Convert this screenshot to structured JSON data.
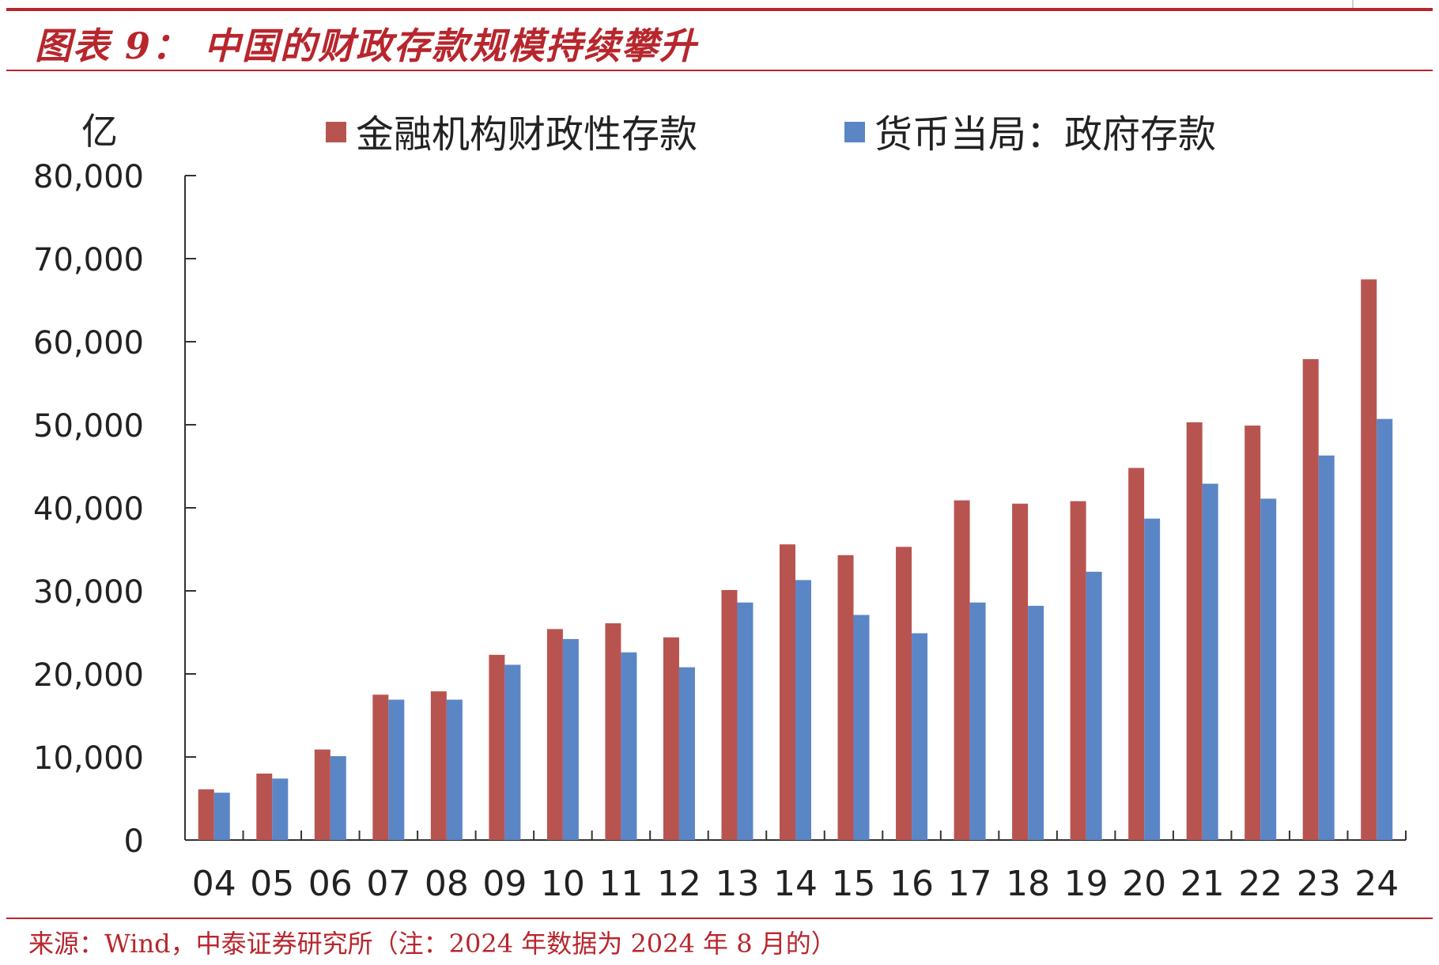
{
  "figure": {
    "title": "图表 9：  中国的财政存款规模持续攀升",
    "source": "来源：Wind，中泰证券研究所（注：2024 年数据为 2024 年 8 月的）"
  },
  "colors": {
    "series1": "#b85450",
    "series2": "#5b86c6",
    "accent": "#b8262d"
  },
  "chart_data": {
    "type": "bar",
    "ylabel": "亿",
    "ylim": [
      0,
      80000
    ],
    "yticks": [
      "0",
      "10,000",
      "20,000",
      "30,000",
      "40,000",
      "50,000",
      "60,000",
      "70,000",
      "80,000"
    ],
    "yticks_values": [
      0,
      10000,
      20000,
      30000,
      40000,
      50000,
      60000,
      70000,
      80000
    ],
    "categories": [
      "04",
      "05",
      "06",
      "07",
      "08",
      "09",
      "10",
      "11",
      "12",
      "13",
      "14",
      "15",
      "16",
      "17",
      "18",
      "19",
      "20",
      "21",
      "22",
      "23",
      "24"
    ],
    "legend_position": "top",
    "grid": false,
    "series": [
      {
        "name": "金融机构财政性存款",
        "values": [
          6100,
          8000,
          10900,
          17500,
          17900,
          22300,
          25400,
          26100,
          24400,
          30100,
          35600,
          34300,
          35300,
          40900,
          40500,
          40800,
          44800,
          50300,
          49900,
          57900,
          67500
        ]
      },
      {
        "name": "货币当局：政府存款",
        "values": [
          5700,
          7400,
          10100,
          16900,
          16900,
          21100,
          24200,
          22600,
          20800,
          28600,
          31300,
          27100,
          24900,
          28600,
          28200,
          32300,
          38700,
          42900,
          41100,
          46300,
          50700
        ]
      }
    ]
  }
}
